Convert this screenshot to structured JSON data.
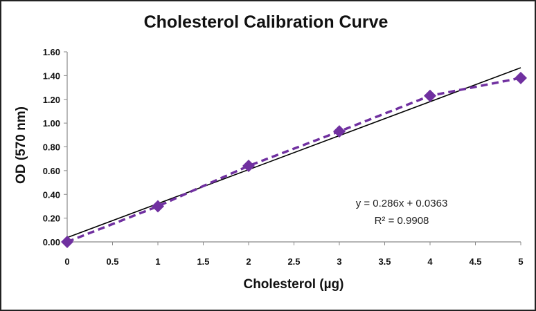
{
  "chart_data": {
    "type": "scatter",
    "title": "Cholesterol Calibration Curve",
    "xlabel": "Cholesterol (µg)",
    "ylabel": "OD (570 nm)",
    "xlim": [
      0,
      5
    ],
    "ylim": [
      0,
      1.6
    ],
    "x_ticks": [
      "0",
      "0.5",
      "1",
      "1.5",
      "2",
      "2.5",
      "3",
      "3.5",
      "4",
      "4.5",
      "5"
    ],
    "y_ticks": [
      "0.00",
      "0.20",
      "0.40",
      "0.60",
      "0.80",
      "1.00",
      "1.20",
      "1.40",
      "1.60"
    ],
    "grid": false,
    "series": [
      {
        "x": [
          0,
          1,
          2,
          3,
          4,
          5
        ],
        "y": [
          0.0,
          0.3,
          0.64,
          0.93,
          1.23,
          1.38
        ],
        "color": "#7030a0",
        "marker": "diamond",
        "line_style": "dashed"
      }
    ],
    "trendline": {
      "slope": 0.286,
      "intercept": 0.0363,
      "color": "#000000",
      "equation": "y = 0.286x + 0.0363",
      "r2": "R² = 0.9908"
    }
  }
}
